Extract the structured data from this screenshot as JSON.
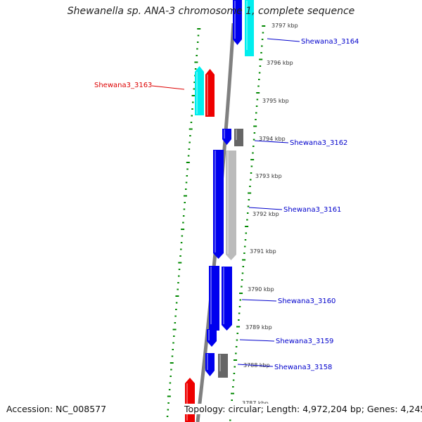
{
  "header": {
    "title": "Shewanella sp. ANA-3 chromosome 1, complete sequence"
  },
  "footer": {
    "accession": "Accession: NC_008577",
    "topology": "Topology: circular; Length: 4,972,204 bp; Genes: 4,245"
  },
  "colors": {
    "forward_gene": "#0000ee",
    "reverse_gene": "#ee0000",
    "forward_feature": "#00eeee",
    "reverse_feature": "#00eeee",
    "other_feature_dark": "#666666",
    "other_feature_light": "#bbbbbb",
    "backbone": "#808080",
    "tick": "#008800",
    "label_forward": "#0000cc",
    "label_reverse": "#dd0000",
    "kbp_label": "#333333"
  },
  "kbp_marks": [
    {
      "label": "3797 kbp"
    },
    {
      "label": "3796 kbp"
    },
    {
      "label": "3795 kbp"
    },
    {
      "label": "3794 kbp"
    },
    {
      "label": "3793 kbp"
    },
    {
      "label": "3792 kbp"
    },
    {
      "label": "3791 kbp"
    },
    {
      "label": "3790 kbp"
    },
    {
      "label": "3789 kbp"
    },
    {
      "label": "3788 kbp"
    },
    {
      "label": "3787 kbp"
    }
  ],
  "gene_labels": [
    {
      "text": "Shewana3_3164",
      "strand": "forward"
    },
    {
      "text": "Shewana3_3163",
      "strand": "reverse"
    },
    {
      "text": "Shewana3_3162",
      "strand": "forward"
    },
    {
      "text": "Shewana3_3161",
      "strand": "forward"
    },
    {
      "text": "Shewana3_3160",
      "strand": "forward"
    },
    {
      "text": "Shewana3_3159",
      "strand": "forward"
    },
    {
      "text": "Shewana3_3158",
      "strand": "forward"
    }
  ]
}
